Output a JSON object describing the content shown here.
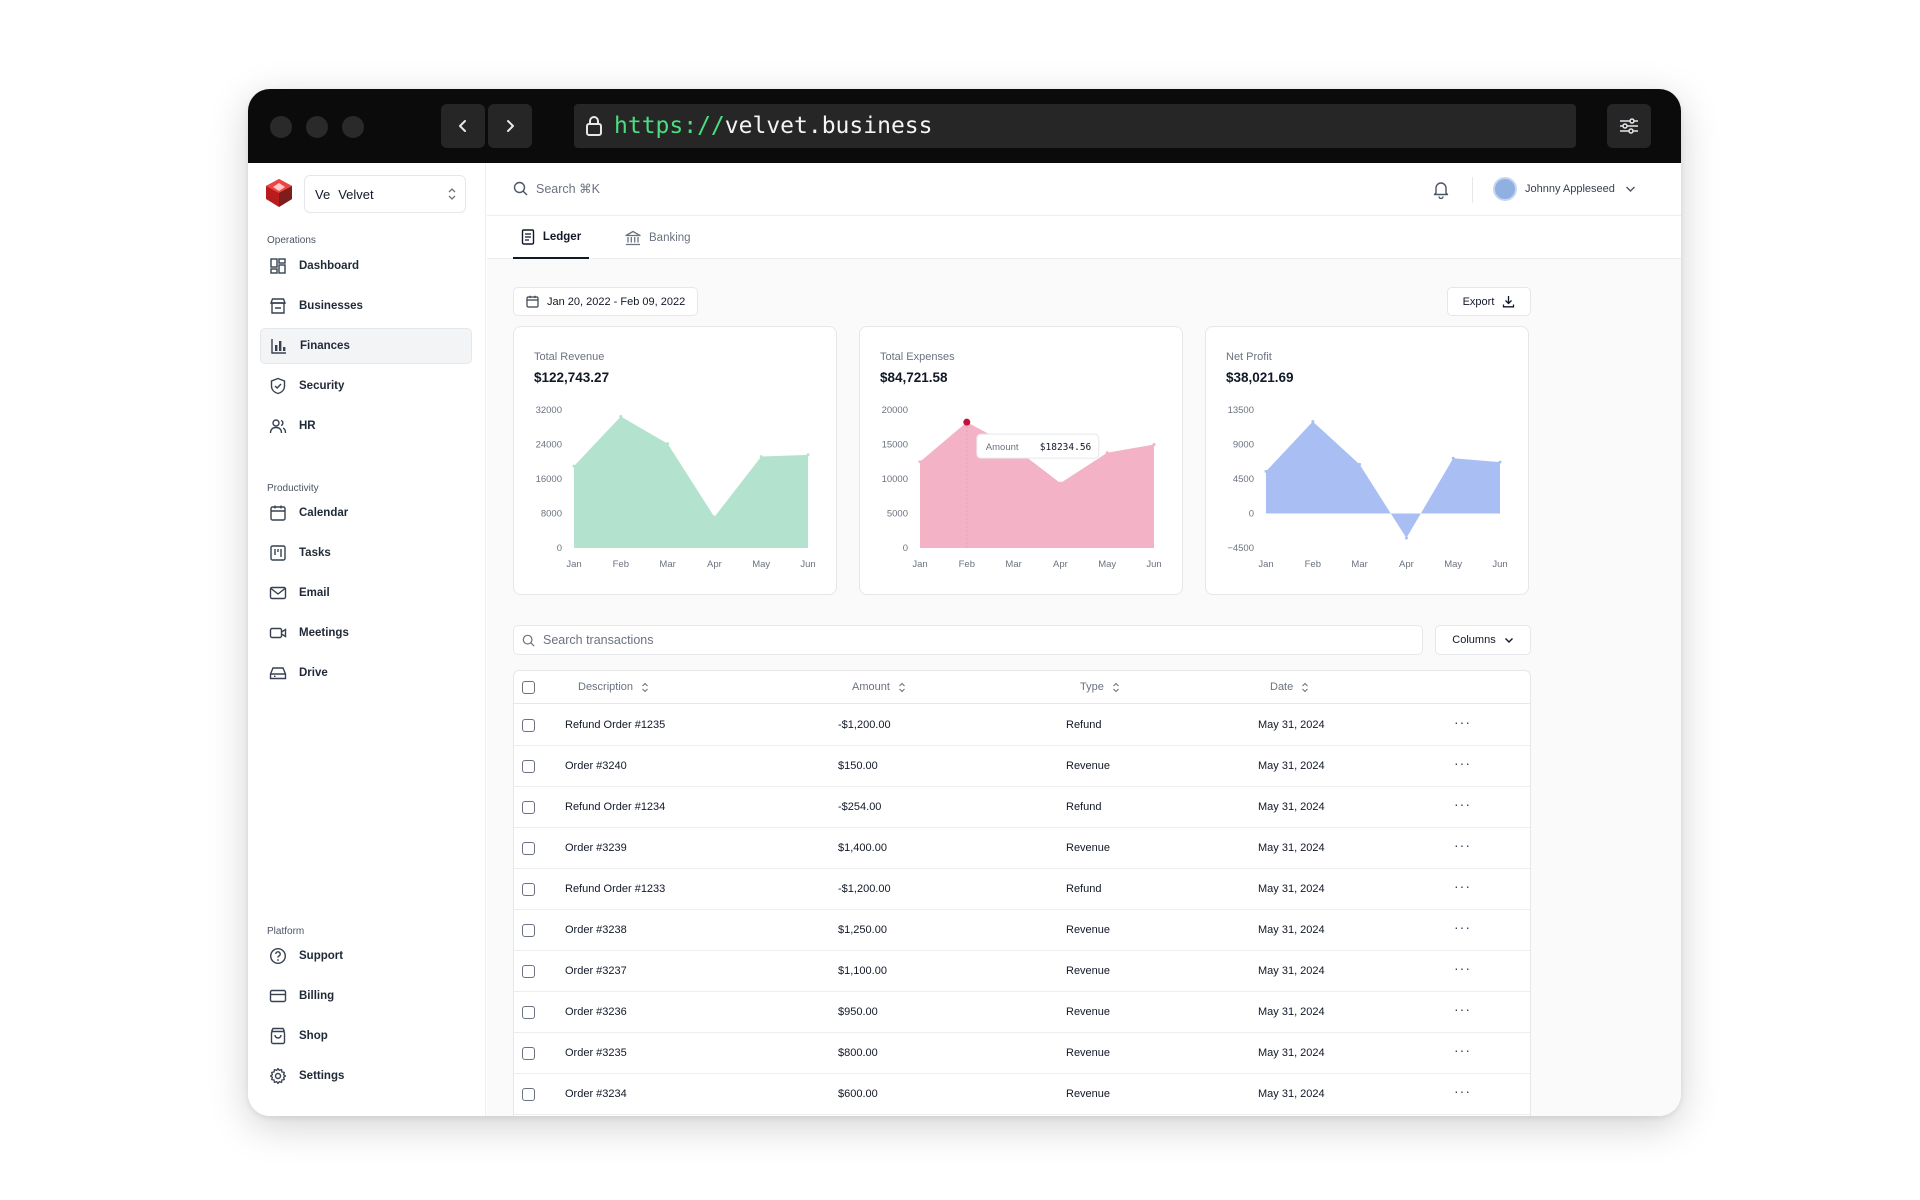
{
  "browser": {
    "url_scheme": "https://",
    "url_host": "velvet.business"
  },
  "workspace": {
    "initials": "Ve",
    "name": "Velvet"
  },
  "sidebar": {
    "operations_label": "Operations",
    "operations": [
      {
        "label": "Dashboard",
        "icon": "dashboard-icon"
      },
      {
        "label": "Businesses",
        "icon": "store-icon"
      },
      {
        "label": "Finances",
        "icon": "bar-chart-icon",
        "active": true
      },
      {
        "label": "Security",
        "icon": "shield-icon"
      },
      {
        "label": "HR",
        "icon": "users-icon"
      }
    ],
    "productivity_label": "Productivity",
    "productivity": [
      {
        "label": "Calendar",
        "icon": "calendar-icon"
      },
      {
        "label": "Tasks",
        "icon": "kanban-icon"
      },
      {
        "label": "Email",
        "icon": "mail-icon"
      },
      {
        "label": "Meetings",
        "icon": "video-icon"
      },
      {
        "label": "Drive",
        "icon": "drive-icon"
      }
    ],
    "platform_label": "Platform",
    "platform": [
      {
        "label": "Support",
        "icon": "help-icon"
      },
      {
        "label": "Billing",
        "icon": "credit-card-icon"
      },
      {
        "label": "Shop",
        "icon": "shopping-bag-icon"
      },
      {
        "label": "Settings",
        "icon": "gear-icon"
      }
    ]
  },
  "topbar": {
    "search_placeholder": "Search ⌘K",
    "user_name": "Johnny Appleseed"
  },
  "tabs": [
    {
      "label": "Ledger",
      "active": true
    },
    {
      "label": "Banking",
      "active": false
    }
  ],
  "date_range": "Jan 20, 2022 - Feb 09, 2022",
  "export_label": "Export",
  "cards": [
    {
      "title": "Total Revenue",
      "value": "$122,743.27"
    },
    {
      "title": "Total Expenses",
      "value": "$84,721.58"
    },
    {
      "title": "Net Profit",
      "value": "$38,021.69"
    }
  ],
  "chart_data": [
    {
      "type": "area",
      "categories": [
        "Jan",
        "Feb",
        "Mar",
        "Apr",
        "May",
        "Jun"
      ],
      "values": [
        19000,
        30500,
        24200,
        7200,
        21200,
        21600
      ],
      "ylim": [
        0,
        32000
      ],
      "yticks": [
        "32000",
        "24000",
        "16000",
        "8000",
        "0"
      ],
      "color": "#b3e3cf"
    },
    {
      "type": "area",
      "categories": [
        "Jan",
        "Feb",
        "Mar",
        "Apr",
        "May",
        "Jun"
      ],
      "values": [
        12500,
        18234.56,
        14600,
        9400,
        13800,
        15000
      ],
      "ylim": [
        0,
        20000
      ],
      "yticks": [
        "20000",
        "15000",
        "10000",
        "5000",
        "0"
      ],
      "color": "#f3b2c5",
      "tooltip": {
        "label": "Amount",
        "value": "$18234.56",
        "index": 1
      }
    },
    {
      "type": "area",
      "categories": [
        "Jan",
        "Feb",
        "Mar",
        "Apr",
        "May",
        "Jun"
      ],
      "values": [
        5500,
        12000,
        6400,
        -3200,
        7200,
        6700
      ],
      "ylim": [
        -4500,
        13500
      ],
      "yticks": [
        "13500",
        "9000",
        "4500",
        "0",
        "−4500"
      ],
      "color": "#a9bff3"
    }
  ],
  "transactions_search_placeholder": "Search transactions",
  "columns_label": "Columns",
  "table": {
    "headers": [
      "Description",
      "Amount",
      "Type",
      "Date"
    ],
    "rows": [
      {
        "description": "Refund Order #1235",
        "amount": "-$1,200.00",
        "type": "Refund",
        "date": "May 31, 2024"
      },
      {
        "description": "Order #3240",
        "amount": "$150.00",
        "type": "Revenue",
        "date": "May 31, 2024"
      },
      {
        "description": "Refund Order #1234",
        "amount": "-$254.00",
        "type": "Refund",
        "date": "May 31, 2024"
      },
      {
        "description": "Order #3239",
        "amount": "$1,400.00",
        "type": "Revenue",
        "date": "May 31, 2024"
      },
      {
        "description": "Refund Order #1233",
        "amount": "-$1,200.00",
        "type": "Refund",
        "date": "May 31, 2024"
      },
      {
        "description": "Order #3238",
        "amount": "$1,250.00",
        "type": "Revenue",
        "date": "May 31, 2024"
      },
      {
        "description": "Order #3237",
        "amount": "$1,100.00",
        "type": "Revenue",
        "date": "May 31, 2024"
      },
      {
        "description": "Order #3236",
        "amount": "$950.00",
        "type": "Revenue",
        "date": "May 31, 2024"
      },
      {
        "description": "Order #3235",
        "amount": "$800.00",
        "type": "Revenue",
        "date": "May 31, 2024"
      },
      {
        "description": "Order #3234",
        "amount": "$600.00",
        "type": "Revenue",
        "date": "May 31, 2024"
      }
    ]
  }
}
